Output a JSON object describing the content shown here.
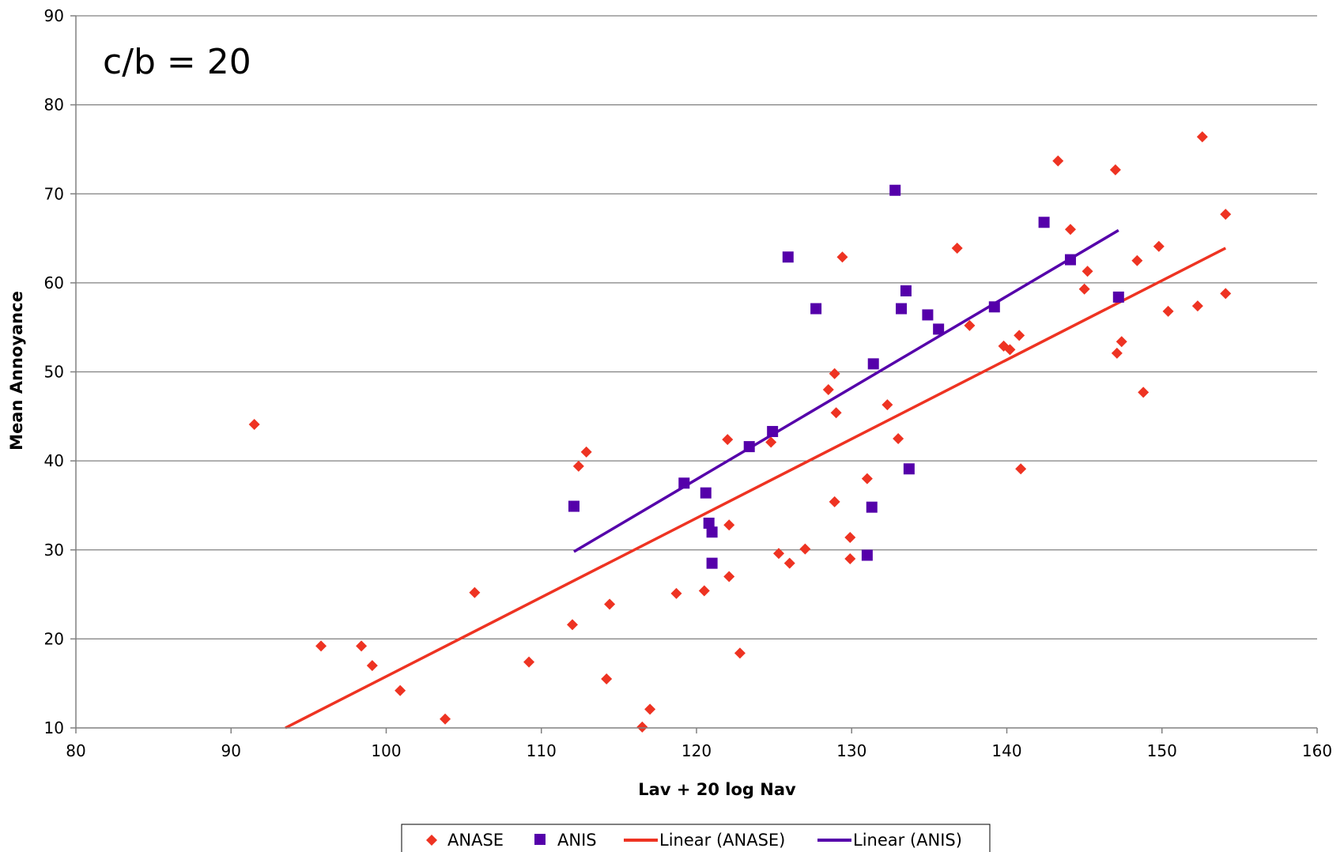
{
  "chart_data": {
    "type": "scatter",
    "title": "",
    "annotation": "c/b = 20",
    "xlabel": "Lav + 20 log Nav",
    "ylabel": "Mean Annoyance",
    "xlim": [
      80,
      160
    ],
    "ylim": [
      10,
      90
    ],
    "xticks": [
      80,
      90,
      100,
      110,
      120,
      130,
      140,
      150,
      160
    ],
    "yticks": [
      10,
      20,
      30,
      40,
      50,
      60,
      70,
      80,
      90
    ],
    "grid": "horizontal",
    "legend_position": "bottom",
    "colors": {
      "anase": "#ee3322",
      "anis": "#5500aa",
      "grid": "#808080",
      "axis": "#808080"
    },
    "series": [
      {
        "name": "ANASE",
        "marker": "diamond",
        "points": [
          [
            91.5,
            44.1
          ],
          [
            95.8,
            19.2
          ],
          [
            98.4,
            19.2
          ],
          [
            99.1,
            17.0
          ],
          [
            100.9,
            14.2
          ],
          [
            103.8,
            11.0
          ],
          [
            105.7,
            25.2
          ],
          [
            109.2,
            17.4
          ],
          [
            112.0,
            21.6
          ],
          [
            112.4,
            39.4
          ],
          [
            112.9,
            41.0
          ],
          [
            114.2,
            15.5
          ],
          [
            114.4,
            23.9
          ],
          [
            116.5,
            10.1
          ],
          [
            117.0,
            12.1
          ],
          [
            118.7,
            25.1
          ],
          [
            120.5,
            25.4
          ],
          [
            122.0,
            42.4
          ],
          [
            122.1,
            32.8
          ],
          [
            122.1,
            27.0
          ],
          [
            122.8,
            18.4
          ],
          [
            124.8,
            42.1
          ],
          [
            125.3,
            29.6
          ],
          [
            126.0,
            28.5
          ],
          [
            127.0,
            30.1
          ],
          [
            128.5,
            48.0
          ],
          [
            128.9,
            49.8
          ],
          [
            128.9,
            35.4
          ],
          [
            129.0,
            45.4
          ],
          [
            129.4,
            62.9
          ],
          [
            129.9,
            31.4
          ],
          [
            129.9,
            29.0
          ],
          [
            131.0,
            38.0
          ],
          [
            132.3,
            46.3
          ],
          [
            133.0,
            42.5
          ],
          [
            136.8,
            63.9
          ],
          [
            137.6,
            55.2
          ],
          [
            139.8,
            52.9
          ],
          [
            140.2,
            52.5
          ],
          [
            140.8,
            54.1
          ],
          [
            140.9,
            39.1
          ],
          [
            143.3,
            73.7
          ],
          [
            144.1,
            66.0
          ],
          [
            145.0,
            59.3
          ],
          [
            145.2,
            61.3
          ],
          [
            147.0,
            72.7
          ],
          [
            147.1,
            52.1
          ],
          [
            147.4,
            53.4
          ],
          [
            148.4,
            62.5
          ],
          [
            148.8,
            47.7
          ],
          [
            149.8,
            64.1
          ],
          [
            150.4,
            56.8
          ],
          [
            152.3,
            57.4
          ],
          [
            152.6,
            76.4
          ],
          [
            154.1,
            67.7
          ],
          [
            154.1,
            58.8
          ]
        ]
      },
      {
        "name": "ANIS",
        "marker": "square",
        "points": [
          [
            112.1,
            34.9
          ],
          [
            119.2,
            37.5
          ],
          [
            120.6,
            36.4
          ],
          [
            120.8,
            33.0
          ],
          [
            121.0,
            32.0
          ],
          [
            121.0,
            28.5
          ],
          [
            123.4,
            41.6
          ],
          [
            124.9,
            43.3
          ],
          [
            125.9,
            62.9
          ],
          [
            127.7,
            57.1
          ],
          [
            131.0,
            29.4
          ],
          [
            131.3,
            34.8
          ],
          [
            131.4,
            50.9
          ],
          [
            132.8,
            70.4
          ],
          [
            133.2,
            57.1
          ],
          [
            133.5,
            59.1
          ],
          [
            133.7,
            39.1
          ],
          [
            134.9,
            56.4
          ],
          [
            135.6,
            54.8
          ],
          [
            139.2,
            57.3
          ],
          [
            142.4,
            66.8
          ],
          [
            144.1,
            62.6
          ],
          [
            147.2,
            58.4
          ]
        ]
      }
    ],
    "trendlines": [
      {
        "name": "Linear (ANASE)",
        "x": [
          93.5,
          154.1
        ],
        "y": [
          10.0,
          63.9
        ]
      },
      {
        "name": "Linear (ANIS)",
        "x": [
          112.1,
          147.2
        ],
        "y": [
          29.8,
          65.9
        ]
      }
    ],
    "legend": [
      "ANASE",
      "ANIS",
      "Linear (ANASE)",
      "Linear (ANIS)"
    ]
  }
}
